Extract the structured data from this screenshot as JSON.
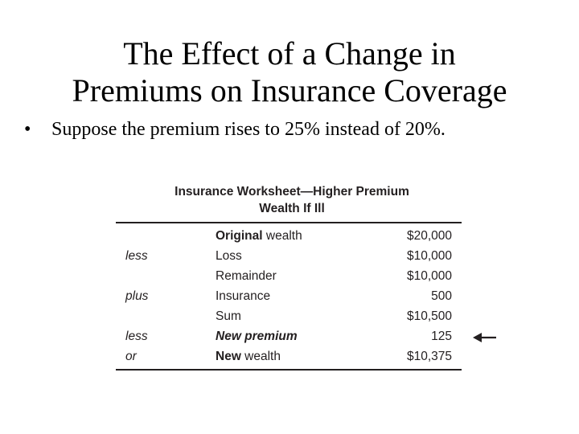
{
  "title": {
    "line1": "The Effect of a Change in",
    "line2": "Premiums on Insurance Coverage"
  },
  "bullet": {
    "marker": "•",
    "text": "Suppose the premium rises to 25% instead of 20%."
  },
  "worksheet": {
    "heading_line1": "Insurance Worksheet—Higher Premium",
    "heading_line2": "Wealth If Ill",
    "rows": [
      {
        "op": "",
        "item_emph": "Original",
        "item_rest": " wealth",
        "amount": "$20,000"
      },
      {
        "op": "less",
        "item_emph": "",
        "item_rest": "Loss",
        "amount": "$10,000"
      },
      {
        "op": "",
        "item_emph": "",
        "item_rest": "Remainder",
        "amount": "$10,000"
      },
      {
        "op": "plus",
        "item_emph": "",
        "item_rest": "Insurance",
        "amount": "500"
      },
      {
        "op": "",
        "item_emph": "",
        "item_rest": "Sum",
        "amount": "$10,500"
      },
      {
        "op": "less",
        "item_emph": "New premium",
        "item_rest": "",
        "amount": "125"
      },
      {
        "op": "or",
        "item_emph": "New",
        "item_rest": " wealth",
        "amount": "$10,375"
      }
    ]
  },
  "icons": {
    "arrow": "left-arrow-icon"
  }
}
